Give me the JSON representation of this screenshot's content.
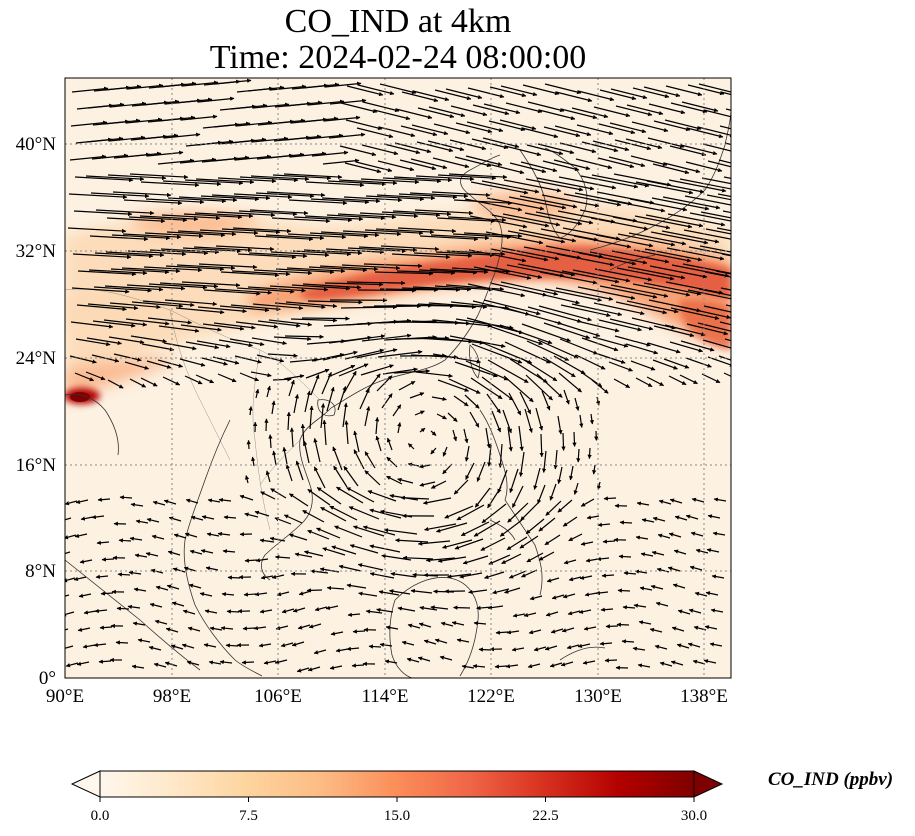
{
  "title": {
    "line1": "CO_IND at 4km",
    "line2": "Time: 2024-02-24 08:00:00"
  },
  "map": {
    "lon_range": [
      90,
      140
    ],
    "lat_range": [
      0,
      45
    ],
    "lon_ticks": [
      "90°E",
      "98°E",
      "106°E",
      "114°E",
      "122°E",
      "130°E",
      "138°E"
    ],
    "lat_ticks": [
      "0°",
      "8°N",
      "16°N",
      "24°N",
      "32°N",
      "40°N"
    ],
    "gridlines": true,
    "field": "CO_IND",
    "vectors": "wind arrows (westerlies north of ~20°N, anticyclonic circulation near 18°N 117°E, weak easterlies in the south)",
    "plume_description": "High-concentration band from ~108°E 29°N eastward to 140°E 27°N; secondary plumes near 100°E 34°N and 124°E 36°N; hotspot near 90°E 21°N"
  },
  "colorbar": {
    "label": "CO_IND (ppbv)",
    "min": 0.0,
    "max": 30.0,
    "ticks": [
      "0.0",
      "7.5",
      "15.0",
      "22.5",
      "30.0"
    ],
    "colormap": "OrRd",
    "colors": [
      "#fff7ec",
      "#fee8c8",
      "#fdd49e",
      "#fdbb84",
      "#fc8d59",
      "#ef6548",
      "#d7301f",
      "#b30000",
      "#7f0000"
    ],
    "extend": "both"
  }
}
